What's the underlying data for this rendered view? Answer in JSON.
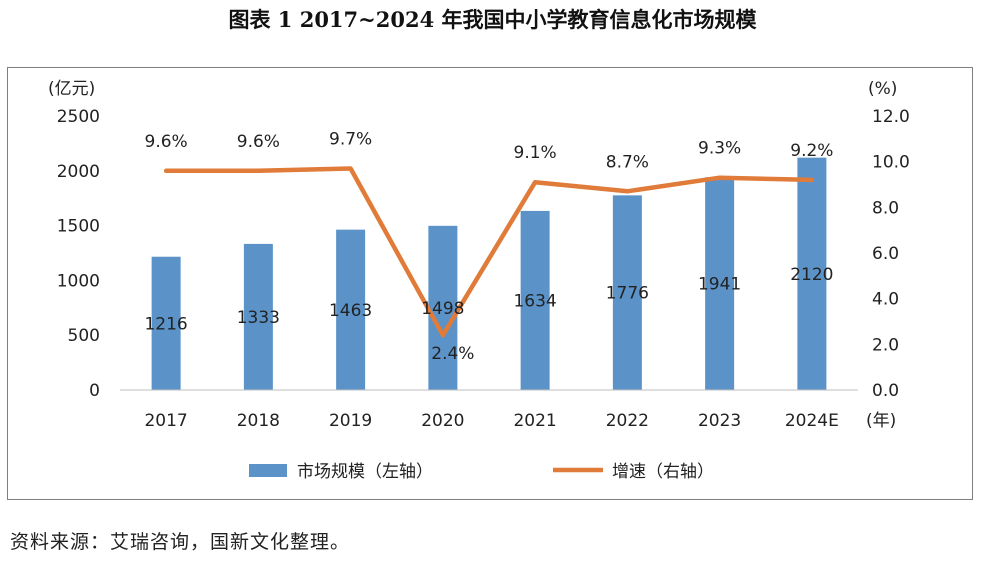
{
  "figure_title": "图表 1  2017~2024 年我国中小学教育信息化市场规模",
  "source_note": "资料来源：艾瑞咨询，国新文化整理。",
  "chart_data": {
    "type": "bar",
    "categories": [
      "2017",
      "2018",
      "2019",
      "2020",
      "2021",
      "2022",
      "2023",
      "2024E"
    ],
    "series": [
      {
        "name": "市场规模（左轴）",
        "type": "bar",
        "axis": "left",
        "color": "#5b93c9",
        "values": [
          1216,
          1333,
          1463,
          1498,
          1634,
          1776,
          1941,
          2120
        ],
        "labels": [
          "1216",
          "1333",
          "1463",
          "1498",
          "1634",
          "1776",
          "1941",
          "2120"
        ]
      },
      {
        "name": "增速（右轴）",
        "type": "line",
        "axis": "right",
        "color": "#e07b39",
        "values": [
          9.6,
          9.6,
          9.7,
          2.4,
          9.1,
          8.7,
          9.3,
          9.2
        ],
        "labels": [
          "9.6%",
          "9.6%",
          "9.7%",
          "2.4%",
          "9.1%",
          "8.7%",
          "9.3%",
          "9.2%"
        ]
      }
    ],
    "y_left": {
      "unit": "(亿元)",
      "ylim": [
        0,
        2500
      ],
      "ticks": [
        "0",
        "500",
        "1000",
        "1500",
        "2000",
        "2500"
      ]
    },
    "y_right": {
      "unit": "(%)",
      "ylim": [
        0,
        12
      ],
      "ticks": [
        "0.0",
        "2.0",
        "4.0",
        "6.0",
        "8.0",
        "10.0",
        "12.0"
      ]
    },
    "x_unit": "(年)",
    "grid": false,
    "legend_position": "bottom"
  }
}
